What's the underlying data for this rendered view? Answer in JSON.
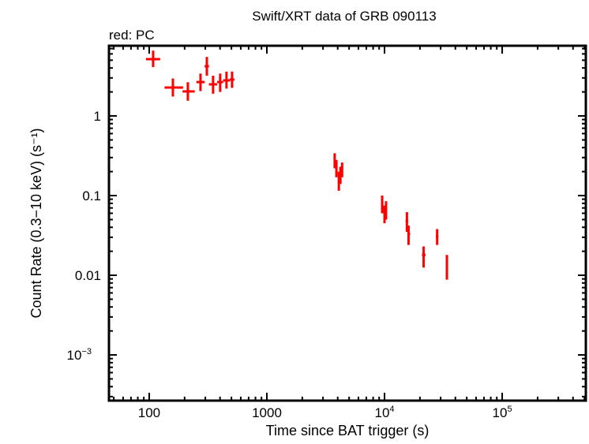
{
  "chart_data": {
    "type": "scatter",
    "title": "Swift/XRT data of GRB 090113",
    "subtitle": "red: PC",
    "xlabel": "Time since BAT trigger (s)",
    "ylabel": "Count Rate (0.3−10 keV) (s⁻¹)",
    "xscale": "log",
    "yscale": "log",
    "xlim": [
      45.5,
      514000
    ],
    "ylim": [
      0.000267,
      7.6
    ],
    "grid": false,
    "x_ticks": [
      {
        "v": 100,
        "label": "100"
      },
      {
        "v": 1000,
        "label": "1000"
      },
      {
        "v": 10000,
        "label": "10",
        "sup": "4"
      },
      {
        "v": 100000,
        "label": "10",
        "sup": "5"
      }
    ],
    "y_ticks": [
      {
        "v": 1,
        "label": "1"
      },
      {
        "v": 0.1,
        "label": "0.1"
      },
      {
        "v": 0.01,
        "label": "0.01"
      },
      {
        "v": 0.001,
        "label": "10",
        "sup": "−3"
      }
    ],
    "series": [
      {
        "color": "#ff0000",
        "points": [
          {
            "x": 108,
            "xerr": [
              94,
              124
            ],
            "y": 5.16,
            "yerr": [
              4.1,
              6.6
            ]
          },
          {
            "x": 159,
            "xerr": [
              135,
              194
            ],
            "y": 2.27,
            "yerr": [
              1.75,
              2.95
            ]
          },
          {
            "x": 213,
            "xerr": [
              192,
              244
            ],
            "y": 2.03,
            "yerr": [
              1.55,
              2.65
            ]
          },
          {
            "x": 273,
            "xerr": [
              252,
              296
            ],
            "y": 2.66,
            "yerr": [
              2.05,
              3.4
            ]
          },
          {
            "x": 309,
            "xerr": [
              296,
              322
            ],
            "y": 4.2,
            "yerr": [
              3.2,
              5.5
            ]
          },
          {
            "x": 349,
            "xerr": [
              322,
              378
            ],
            "y": 2.49,
            "yerr": [
              1.9,
              3.2
            ]
          },
          {
            "x": 401,
            "xerr": [
              378,
              425
            ],
            "y": 2.66,
            "yerr": [
              2.0,
              3.4
            ]
          },
          {
            "x": 454,
            "xerr": [
              425,
              484
            ],
            "y": 2.79,
            "yerr": [
              2.2,
              3.6
            ]
          },
          {
            "x": 506,
            "xerr": [
              484,
              530
            ],
            "y": 2.86,
            "yerr": [
              2.25,
              3.6
            ]
          },
          {
            "x": 3770,
            "xerr": [
              3700,
              3840
            ],
            "y": 0.285,
            "yerr": [
              0.22,
              0.34
            ]
          },
          {
            "x": 3900,
            "xerr": [
              3840,
              3960
            ],
            "y": 0.222,
            "yerr": [
              0.17,
              0.28
            ]
          },
          {
            "x": 4090,
            "xerr": [
              4000,
              4170
            ],
            "y": 0.151,
            "yerr": [
              0.115,
              0.2
            ]
          },
          {
            "x": 4220,
            "xerr": [
              4170,
              4290
            ],
            "y": 0.181,
            "yerr": [
              0.14,
              0.23
            ]
          },
          {
            "x": 4360,
            "xerr": [
              4290,
              4450
            ],
            "y": 0.217,
            "yerr": [
              0.17,
              0.26
            ]
          },
          {
            "x": 9550,
            "xerr": [
              9350,
              9750
            ],
            "y": 0.08,
            "yerr": [
              0.06,
              0.1
            ]
          },
          {
            "x": 10000,
            "xerr": [
              9800,
              10150
            ],
            "y": 0.0606,
            "yerr": [
              0.045,
              0.075
            ]
          },
          {
            "x": 10300,
            "xerr": [
              10150,
              10500
            ],
            "y": 0.0694,
            "yerr": [
              0.05,
              0.085
            ]
          },
          {
            "x": 15500,
            "xerr": [
              15100,
              15900
            ],
            "y": 0.048,
            "yerr": [
              0.035,
              0.062
            ]
          },
          {
            "x": 16000,
            "xerr": [
              15700,
              16500
            ],
            "y": 0.033,
            "yerr": [
              0.024,
              0.042
            ]
          },
          {
            "x": 21500,
            "xerr": [
              20800,
              22300
            ],
            "y": 0.018,
            "yerr": [
              0.0125,
              0.023
            ]
          },
          {
            "x": 28000,
            "xerr": [
              27300,
              28700
            ],
            "y": 0.0306,
            "yerr": [
              0.024,
              0.038
            ]
          },
          {
            "x": 33900,
            "xerr": [
              33200,
              34600
            ],
            "y": 0.0134,
            "yerr": [
              0.0088,
              0.018
            ]
          }
        ]
      }
    ]
  }
}
